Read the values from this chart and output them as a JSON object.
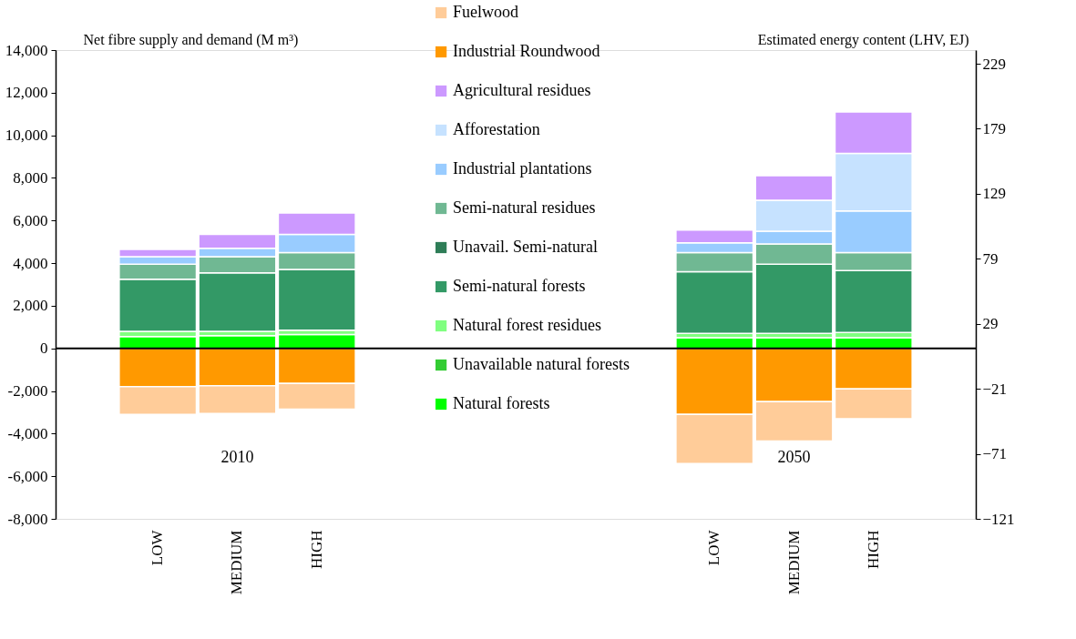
{
  "chart_data": {
    "type": "bar",
    "stacked": true,
    "ylabel": "Net fibre supply and demand (M m³)",
    "y2label": "Estimated energy content (LHV, EJ)",
    "categories": [
      "LOW",
      "MEDIUM",
      "HIGH",
      null,
      null,
      null,
      null,
      "LOW",
      "MEDIUM",
      "HIGH"
    ],
    "series": [
      {
        "name": "Natural forests",
        "color": "#00ff00",
        "values": [
          550,
          600,
          650,
          null,
          null,
          null,
          null,
          500,
          500,
          500
        ]
      },
      {
        "name": "Unavailable natural forests",
        "color": "#33cc33",
        "values": [
          null,
          null,
          null,
          null,
          null,
          null,
          null,
          null,
          null,
          null
        ]
      },
      {
        "name": "Natural forest residues",
        "color": "#80ff80",
        "values": [
          250,
          200,
          200,
          null,
          null,
          null,
          null,
          200,
          200,
          250
        ]
      },
      {
        "name": "Semi-natural forests",
        "color": "#339966",
        "values": [
          2450,
          2750,
          2850,
          null,
          null,
          null,
          null,
          2900,
          3250,
          2900
        ]
      },
      {
        "name": "Unavail. Semi-natural",
        "color": "#2e7d57",
        "values": [
          null,
          null,
          null,
          null,
          null,
          null,
          null,
          null,
          null,
          null
        ]
      },
      {
        "name": "Semi-natural residues",
        "color": "#70b893",
        "values": [
          700,
          750,
          800,
          null,
          null,
          null,
          null,
          900,
          950,
          850
        ]
      },
      {
        "name": "Industrial plantations",
        "color": "#99ccff",
        "values": [
          350,
          400,
          850,
          null,
          null,
          null,
          null,
          450,
          600,
          1950
        ]
      },
      {
        "name": "Afforestation",
        "color": "#c6e2ff",
        "values": [
          null,
          null,
          null,
          null,
          null,
          null,
          null,
          null,
          1450,
          2700
        ]
      },
      {
        "name": "Agricultural residues",
        "color": "#cc99ff",
        "values": [
          350,
          650,
          1000,
          null,
          null,
          null,
          null,
          600,
          1150,
          1950
        ]
      },
      {
        "name": "Industrial Roundwood",
        "color": "#ff9900",
        "values": [
          -1800,
          -1750,
          -1650,
          null,
          null,
          null,
          null,
          -3100,
          -2500,
          -1900
        ]
      },
      {
        "name": "Fuelwood",
        "color": "#ffcc99",
        "values": [
          -1300,
          -1300,
          -1200,
          null,
          null,
          null,
          null,
          -2300,
          -1850,
          -1400
        ]
      }
    ],
    "ylim": [
      -8000,
      14000
    ],
    "yticks": [
      {
        "value": -8000,
        "label": "-8,000"
      },
      {
        "value": -6000,
        "label": "-6,000"
      },
      {
        "value": -4000,
        "label": "-4,000"
      },
      {
        "value": -2000,
        "label": "-2,000"
      },
      0,
      {
        "value": 2000,
        "label": "2,000"
      },
      {
        "value": 4000,
        "label": "4,000"
      },
      {
        "value": 6000,
        "label": "6,000"
      },
      {
        "value": 8000,
        "label": "8,000"
      },
      {
        "value": 10000,
        "label": "10,000"
      },
      {
        "value": 12000,
        "label": "12,000"
      },
      {
        "value": 14000,
        "label": "14,000"
      }
    ],
    "y2lim": [
      -121,
      239.5
    ],
    "y2ticks": [
      -121,
      -71,
      -21,
      29,
      79,
      129,
      179,
      229
    ],
    "ref_lines": [
      {
        "axis": "y",
        "value": 0,
        "color": "#000000"
      }
    ],
    "annotations": [
      "2010",
      "2050"
    ],
    "legend": "top",
    "grid": false
  }
}
